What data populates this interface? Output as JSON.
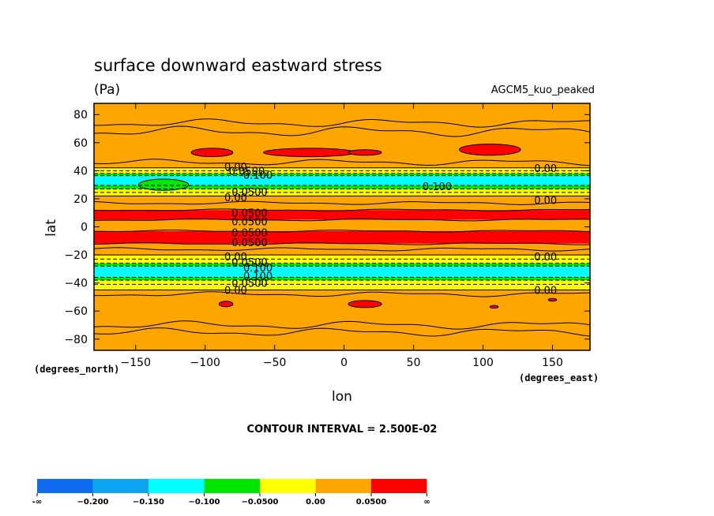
{
  "chart_data": {
    "type": "heatmap",
    "title": "surface downward eastward stress",
    "units": "(Pa)",
    "run_label": "AGCM5_kuo_peaked",
    "xlabel": "lon",
    "ylabel": "lat",
    "x_units_label": "(degrees_east)",
    "y_units_label": "(degrees_north)",
    "xlim": [
      -180,
      177
    ],
    "ylim": [
      -88,
      88
    ],
    "x_ticks": [
      -150,
      -100,
      -50,
      0,
      50,
      100,
      150
    ],
    "x_tick_labels": [
      "−150",
      "−100",
      "−50",
      "0",
      "50",
      "100",
      "150"
    ],
    "y_ticks": [
      80,
      60,
      40,
      20,
      0,
      -20,
      -40,
      -60,
      -80
    ],
    "y_tick_labels": [
      "80",
      "60",
      "40",
      "20",
      "0",
      "−20",
      "−40",
      "−60",
      "−80"
    ],
    "contour_interval_text": "CONTOUR INTERVAL = 2.500E-02",
    "colorbar": {
      "levels": [
        "-∞",
        "−0.200",
        "−0.150",
        "−0.100",
        "−0.0500",
        "0.00",
        "0.0500",
        "∞"
      ],
      "colors": [
        "#0f6bf0",
        "#0aa4f0",
        "#00ffff",
        "#00e600",
        "#ffff00",
        "#ffa500",
        "#ff0000"
      ]
    },
    "zonal_bands": [
      {
        "lat_from": 88,
        "lat_to": 42,
        "value": 0.025
      },
      {
        "lat_from": 42,
        "lat_to": 38,
        "value": -0.025
      },
      {
        "lat_from": 38,
        "lat_to": 36.5,
        "value": -0.075
      },
      {
        "lat_from": 36.5,
        "lat_to": 29.5,
        "value": -0.12
      },
      {
        "lat_from": 29.5,
        "lat_to": 27,
        "value": -0.075
      },
      {
        "lat_from": 27,
        "lat_to": 22,
        "value": -0.025
      },
      {
        "lat_from": 22,
        "lat_to": 12,
        "value": 0.025
      },
      {
        "lat_from": 12,
        "lat_to": 5,
        "value": 0.06
      },
      {
        "lat_from": 5,
        "lat_to": -3,
        "value": 0.025
      },
      {
        "lat_from": -3,
        "lat_to": -12,
        "value": 0.06
      },
      {
        "lat_from": -12,
        "lat_to": -20,
        "value": 0.025
      },
      {
        "lat_from": -20,
        "lat_to": -26,
        "value": -0.025
      },
      {
        "lat_from": -26,
        "lat_to": -28,
        "value": -0.075
      },
      {
        "lat_from": -28,
        "lat_to": -36,
        "value": -0.12
      },
      {
        "lat_from": -36,
        "lat_to": -38,
        "value": -0.075
      },
      {
        "lat_from": -38,
        "lat_to": -45,
        "value": -0.025
      },
      {
        "lat_from": -45,
        "lat_to": -88,
        "value": 0.025
      }
    ],
    "patches": [
      {
        "lon": -95,
        "lat": 53,
        "dlon": 15,
        "dlat": 3,
        "value": 0.06
      },
      {
        "lon": -25,
        "lat": 53,
        "dlon": 33,
        "dlat": 3,
        "value": 0.06
      },
      {
        "lon": 15,
        "lat": 53,
        "dlon": 12,
        "dlat": 2,
        "value": 0.06
      },
      {
        "lon": 105,
        "lat": 55,
        "dlon": 22,
        "dlat": 4,
        "value": 0.06
      },
      {
        "lon": -130,
        "lat": 30,
        "dlon": 18,
        "dlat": 4,
        "value": -0.075
      },
      {
        "lon": -85,
        "lat": -55,
        "dlon": 5,
        "dlat": 2,
        "value": 0.06
      },
      {
        "lon": 15,
        "lat": -55,
        "dlon": 12,
        "dlat": 2.5,
        "value": 0.06
      },
      {
        "lon": 108,
        "lat": -57,
        "dlon": 3,
        "dlat": 1,
        "value": 0.06
      },
      {
        "lon": 150,
        "lat": -52,
        "dlon": 3,
        "dlat": 1,
        "value": 0.06
      }
    ],
    "contour_lines": [
      {
        "lat": 74,
        "style": "solid",
        "wave": 2
      },
      {
        "lat": 68,
        "style": "solid",
        "wave": 2.5
      },
      {
        "lat": 46,
        "style": "solid",
        "wave": 1.5
      },
      {
        "lat": 42,
        "style": "solid",
        "wave": 0
      },
      {
        "lat": 40,
        "style": "dashed",
        "wave": 0
      },
      {
        "lat": 38,
        "style": "dashed",
        "wave": 0
      },
      {
        "lat": 36.5,
        "style": "dashed",
        "wave": 0
      },
      {
        "lat": 29.5,
        "style": "dashed",
        "wave": 0
      },
      {
        "lat": 27,
        "style": "dashed",
        "wave": 0
      },
      {
        "lat": 24.5,
        "style": "dashed",
        "wave": 0
      },
      {
        "lat": 22,
        "style": "solid",
        "wave": 0
      },
      {
        "lat": 17,
        "style": "solid",
        "wave": 0.8
      },
      {
        "lat": 12,
        "style": "solid",
        "wave": 0.5
      },
      {
        "lat": 5,
        "style": "solid",
        "wave": 0.5
      },
      {
        "lat": -3,
        "style": "solid",
        "wave": 0.5
      },
      {
        "lat": -12,
        "style": "solid",
        "wave": 0.5
      },
      {
        "lat": -16,
        "style": "solid",
        "wave": 0.8
      },
      {
        "lat": -20,
        "style": "solid",
        "wave": 0
      },
      {
        "lat": -23,
        "style": "dashed",
        "wave": 0
      },
      {
        "lat": -26,
        "style": "dashed",
        "wave": 0
      },
      {
        "lat": -28,
        "style": "dashed",
        "wave": 0
      },
      {
        "lat": -36,
        "style": "dashed",
        "wave": 0
      },
      {
        "lat": -38,
        "style": "dashed",
        "wave": 0
      },
      {
        "lat": -41,
        "style": "dashed",
        "wave": 0
      },
      {
        "lat": -45,
        "style": "solid",
        "wave": 0
      },
      {
        "lat": -48,
        "style": "solid",
        "wave": 1.2
      },
      {
        "lat": -70,
        "style": "solid",
        "wave": 2
      },
      {
        "lat": -75,
        "style": "solid",
        "wave": 2
      }
    ],
    "contour_labels": [
      {
        "text": "0.00",
        "lon": -78,
        "lat": 43
      },
      {
        "text": "0.0500",
        "lon": -70,
        "lat": 40
      },
      {
        "text": "0.100",
        "lon": -62,
        "lat": 37
      },
      {
        "text": "0.100",
        "lon": 67,
        "lat": 29
      },
      {
        "text": "0.0500",
        "lon": -68,
        "lat": 25
      },
      {
        "text": "0.00",
        "lon": -78,
        "lat": 21
      },
      {
        "text": "0.0500",
        "lon": -68,
        "lat": 10
      },
      {
        "text": "0.0500",
        "lon": -68,
        "lat": 4
      },
      {
        "text": "0.0500",
        "lon": -68,
        "lat": -4
      },
      {
        "text": "0.0500",
        "lon": -68,
        "lat": -11
      },
      {
        "text": "0.00",
        "lon": -78,
        "lat": -21
      },
      {
        "text": "0.0500",
        "lon": -68,
        "lat": -25
      },
      {
        "text": "0.100",
        "lon": -62,
        "lat": -29
      },
      {
        "text": "0.100",
        "lon": -62,
        "lat": -35
      },
      {
        "text": "0.0500",
        "lon": -68,
        "lat": -40
      },
      {
        "text": "0.00",
        "lon": -78,
        "lat": -45
      },
      {
        "text": "0.00",
        "lon": 145,
        "lat": 42
      },
      {
        "text": "0.00",
        "lon": 145,
        "lat": 19
      },
      {
        "text": "0.00",
        "lon": 145,
        "lat": -21
      },
      {
        "text": "0.00",
        "lon": 145,
        "lat": -45
      }
    ]
  }
}
